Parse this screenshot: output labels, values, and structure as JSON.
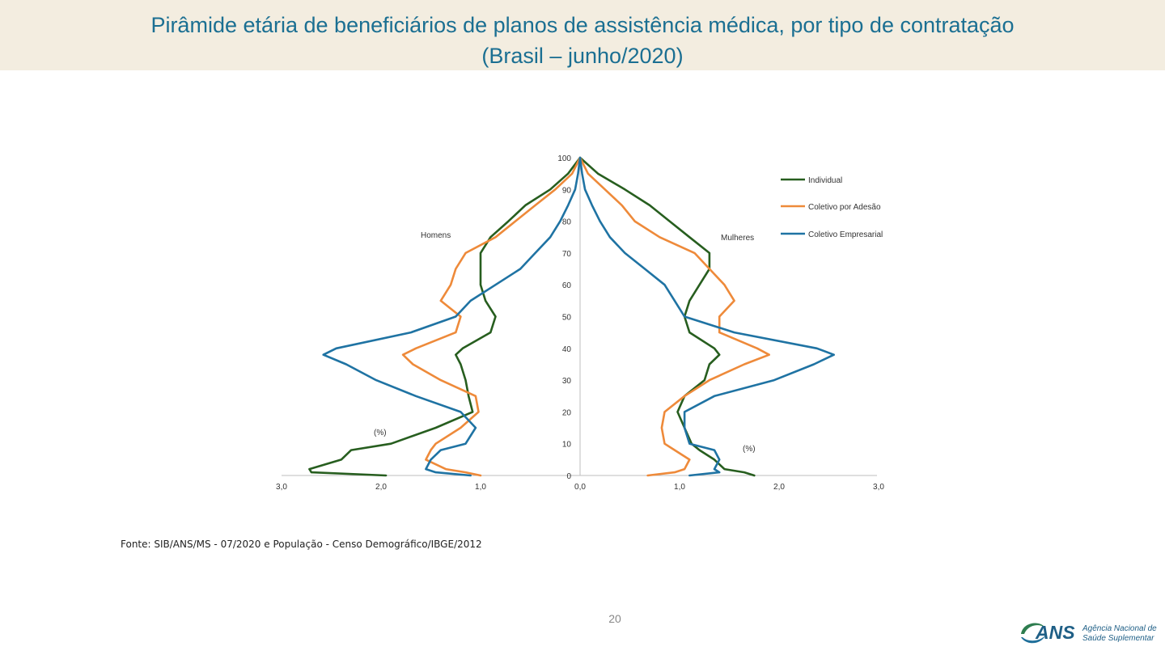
{
  "header": {
    "title_line1": "Pirâmide etária de beneficiários de planos de assistência médica, por tipo de contratação",
    "title_line2": "(Brasil – junho/2020)"
  },
  "colors": {
    "title": "#1b6f92",
    "band": "#f3ede0",
    "individual": "#275e1f",
    "adesao": "#ee8a3a",
    "empresarial": "#1f73a3"
  },
  "chart_data": {
    "type": "line",
    "title": "Pirâmide etária de beneficiários de planos de assistência médica, por tipo de contratação (Brasil – junho/2020)",
    "xlabel_left": "(%)",
    "xlabel_right": "(%)",
    "side_labels": {
      "left": "Homens",
      "right": "Mulheres"
    },
    "x_tick_labels": [
      "3,0",
      "2,0",
      "1,0",
      "0,0",
      "1,0",
      "2,0",
      "3,0"
    ],
    "x_ticks": [
      -3,
      -2,
      -1,
      0,
      1,
      2,
      3
    ],
    "y_tick_labels": [
      "0",
      "10",
      "20",
      "30",
      "40",
      "50",
      "60",
      "70",
      "80",
      "90",
      "100"
    ],
    "y_ticks": [
      0,
      10,
      20,
      30,
      40,
      50,
      60,
      70,
      80,
      90,
      100
    ],
    "xlim": [
      -3,
      3
    ],
    "ylim": [
      0,
      100
    ],
    "ages": [
      0,
      1,
      2,
      5,
      8,
      10,
      15,
      20,
      25,
      30,
      35,
      38,
      40,
      45,
      50,
      55,
      60,
      65,
      70,
      75,
      80,
      85,
      90,
      95,
      100
    ],
    "series": [
      {
        "name": "Individual",
        "key": "individual",
        "men": [
          1.95,
          2.7,
          2.72,
          2.4,
          2.3,
          1.9,
          1.45,
          1.08,
          1.12,
          1.15,
          1.2,
          1.25,
          1.18,
          0.9,
          0.85,
          0.95,
          1.0,
          1.0,
          1.0,
          0.9,
          0.72,
          0.55,
          0.3,
          0.12,
          0.0
        ],
        "women": [
          1.75,
          1.65,
          1.45,
          1.35,
          1.2,
          1.12,
          1.05,
          0.98,
          1.05,
          1.25,
          1.3,
          1.4,
          1.35,
          1.1,
          1.05,
          1.1,
          1.2,
          1.3,
          1.3,
          1.1,
          0.9,
          0.7,
          0.45,
          0.18,
          0.0
        ]
      },
      {
        "name": "Coletivo por Adesão",
        "key": "adesao",
        "men": [
          1.0,
          1.15,
          1.35,
          1.55,
          1.5,
          1.45,
          1.2,
          1.02,
          1.05,
          1.4,
          1.68,
          1.78,
          1.65,
          1.25,
          1.2,
          1.4,
          1.3,
          1.25,
          1.15,
          0.85,
          0.65,
          0.45,
          0.25,
          0.08,
          0.0
        ],
        "women": [
          0.68,
          0.95,
          1.05,
          1.1,
          0.95,
          0.85,
          0.82,
          0.85,
          1.05,
          1.3,
          1.65,
          1.9,
          1.78,
          1.4,
          1.4,
          1.55,
          1.45,
          1.3,
          1.15,
          0.8,
          0.55,
          0.42,
          0.25,
          0.08,
          0.0
        ]
      },
      {
        "name": "Coletivo Empresarial",
        "key": "empresarial",
        "men": [
          1.1,
          1.45,
          1.55,
          1.5,
          1.4,
          1.15,
          1.05,
          1.2,
          1.65,
          2.05,
          2.35,
          2.58,
          2.45,
          1.7,
          1.25,
          1.1,
          0.85,
          0.6,
          0.45,
          0.3,
          0.2,
          0.12,
          0.05,
          0.02,
          0.0
        ],
        "women": [
          1.1,
          1.4,
          1.35,
          1.4,
          1.35,
          1.1,
          1.05,
          1.05,
          1.35,
          1.95,
          2.35,
          2.55,
          2.38,
          1.55,
          1.05,
          0.95,
          0.85,
          0.65,
          0.45,
          0.3,
          0.2,
          0.12,
          0.05,
          0.02,
          0.0
        ]
      }
    ]
  },
  "footer": {
    "source": "Fonte: SIB/ANS/MS - 07/2020 e População - Censo Demográfico/IBGE/2012",
    "page_number": "20",
    "logo_text": "ANS",
    "logo_line1": "Agência Nacional de",
    "logo_line2": "Saúde Suplementar"
  }
}
